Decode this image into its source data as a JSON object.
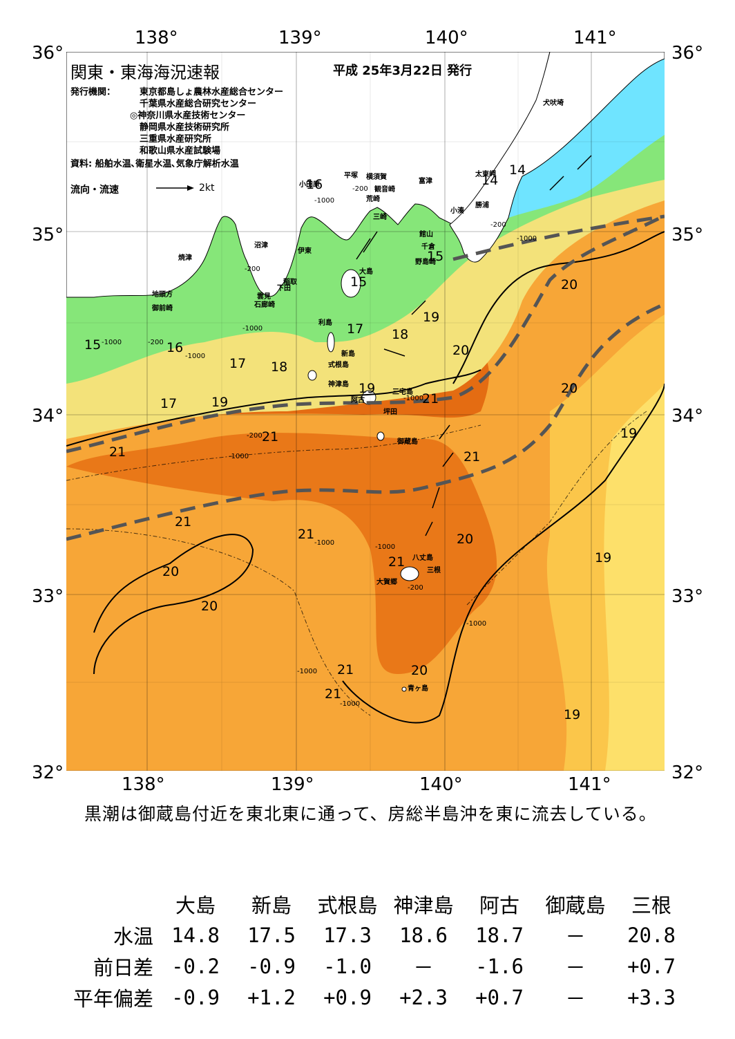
{
  "map": {
    "title": "関東・東海海況速報",
    "issue_date": "平成 25年3月22日 発行",
    "issuer_label": "発行機関：",
    "issuers": [
      "東京都島しょ農林水産総合センター",
      "千葉県水産総合研究センター",
      "◎神奈川県水産技術センター",
      "静岡県水産技術研究所",
      "三重県水産研究所",
      "和歌山県水産試験場"
    ],
    "sources": "資料: 船舶水温､衛星水温､気象庁解析水温",
    "legend_label": "流向・流速",
    "legend_scale": "2kt",
    "lon_labels": [
      "138°",
      "139°",
      "140°",
      "141°"
    ],
    "lat_labels": [
      "36°",
      "35°",
      "34°",
      "33°",
      "32°"
    ],
    "place_names": [
      "犬吠埼",
      "太東岬",
      "勝浦",
      "小湊",
      "館山",
      "千倉",
      "野島崎",
      "富津",
      "横須賀",
      "観音崎",
      "平塚",
      "荒崎",
      "三崎",
      "小田原",
      "沼津",
      "伊東",
      "稲取",
      "下田",
      "雲見",
      "石廊崎",
      "焼津",
      "地頭方",
      "御前崎",
      "大島",
      "利島",
      "新島",
      "式根島",
      "神津島",
      "三宅島",
      "阿古",
      "坪田",
      "御蔵島",
      "八丈島",
      "三根",
      "大賀郷",
      "青ヶ島"
    ],
    "temp_labels": [
      "14",
      "14",
      "15",
      "15",
      "16",
      "16",
      "17",
      "17",
      "17",
      "18",
      "18",
      "19",
      "19",
      "19",
      "19",
      "19",
      "19",
      "20",
      "20",
      "20",
      "20",
      "20",
      "20",
      "20",
      "21",
      "21",
      "21",
      "21",
      "21",
      "21",
      "21",
      "21",
      "21",
      "15"
    ],
    "depth_labels": [
      "-200",
      "-1000",
      "-200",
      "-1000",
      "-200",
      "-1000",
      "-200",
      "-1000",
      "-1000",
      "-1000",
      "-1000",
      "-1000",
      "-200",
      "-1000",
      "-200",
      "-1000",
      "-1000",
      "-1000"
    ],
    "colors": {
      "cold": "#6ee4ff",
      "green": "#7de878",
      "yellow": "#f4ec78",
      "orange": "#f59a1e",
      "warm": "#e86a10",
      "land": "#ffffff",
      "kuroshio_axis": "#555555"
    }
  },
  "summary": "黒潮は御蔵島付近を東北東に通って、房総半島沖を東に流去している。",
  "table": {
    "columns": [
      "大島",
      "新島",
      "式根島",
      "神津島",
      "阿古",
      "御蔵島",
      "三根"
    ],
    "rows": [
      {
        "label": "水温",
        "values": [
          "14.8",
          "17.5",
          "17.3",
          "18.6",
          "18.7",
          "－",
          "20.8"
        ]
      },
      {
        "label": "前日差",
        "values": [
          "-0.2",
          "-0.9",
          "-1.0",
          "－",
          "-1.6",
          "－",
          "+0.7"
        ]
      },
      {
        "label": "平年偏差",
        "values": [
          "-0.9",
          "+1.2",
          "+0.9",
          "+2.3",
          "+0.7",
          "－",
          "+3.3"
        ]
      }
    ]
  }
}
